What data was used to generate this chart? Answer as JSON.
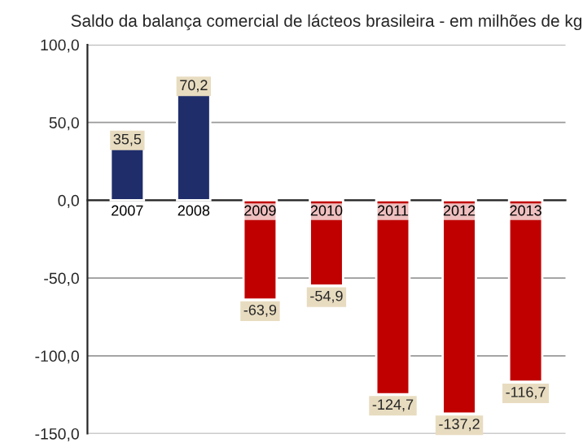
{
  "chart_data": {
    "type": "bar",
    "title": "Saldo da balança comercial de lácteos brasileira - em milhões de kg",
    "categories": [
      "2007",
      "2008",
      "2009",
      "2010",
      "2011",
      "2012",
      "2013"
    ],
    "values": [
      35.5,
      70.2,
      -63.9,
      -54.9,
      -124.7,
      -137.2,
      -116.7
    ],
    "value_labels": [
      "35,5",
      "70,2",
      "-63,9",
      "-54,9",
      "-124,7",
      "-137,2",
      "-116,7"
    ],
    "colors": [
      "#1f2d6b",
      "#1f2d6b",
      "#c00000",
      "#c00000",
      "#c00000",
      "#c00000",
      "#c00000"
    ],
    "ylim": [
      -150,
      100
    ],
    "yticks": [
      {
        "value": 100,
        "label": "100,0"
      },
      {
        "value": 50,
        "label": "50,0"
      },
      {
        "value": 0,
        "label": "0,0"
      },
      {
        "value": -50,
        "label": "-50,0"
      },
      {
        "value": -100,
        "label": "-100,0"
      },
      {
        "value": -150,
        "label": "-150,0"
      }
    ],
    "grid": "y",
    "legend": false
  }
}
